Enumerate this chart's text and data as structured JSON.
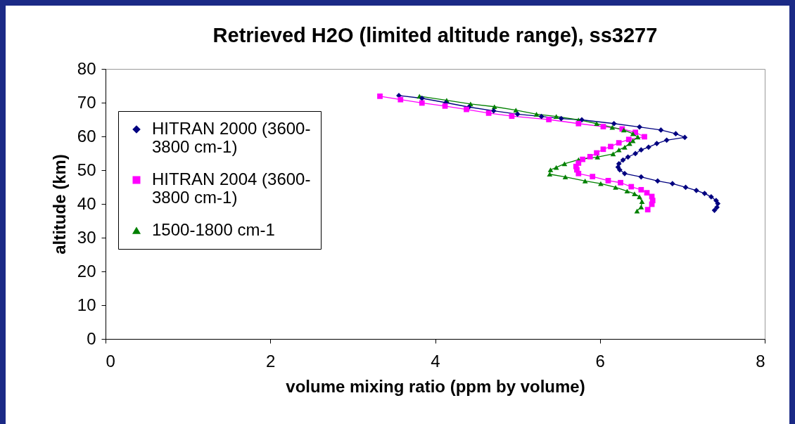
{
  "chart_data": {
    "type": "line",
    "title": "Retrieved H2O (limited altitude range), ss3277",
    "xlabel": "volume mixing ratio (ppm by volume)",
    "ylabel": "altitude (km)",
    "xlim": [
      0,
      8
    ],
    "xticks": [
      0,
      2,
      4,
      6,
      8
    ],
    "ylim": [
      0,
      80
    ],
    "yticks": [
      0,
      10,
      20,
      30,
      40,
      50,
      60,
      70,
      80
    ],
    "grid": false,
    "legend": "top left",
    "line_style": "solid",
    "series": [
      {
        "name": "HITRAN 2000 (3600-3800 cm-1)",
        "color": "#000080",
        "marker": "diamond",
        "x": [
          3.56,
          3.84,
          4.13,
          4.41,
          4.71,
          5.0,
          5.29,
          5.53,
          5.78,
          6.17,
          6.48,
          6.74,
          6.92,
          7.03,
          6.81,
          6.69,
          6.59,
          6.5,
          6.43,
          6.34,
          6.28,
          6.23,
          6.22,
          6.24,
          6.3,
          6.5,
          6.7,
          6.88,
          7.04,
          7.17,
          7.27,
          7.35,
          7.41,
          7.43,
          7.42,
          7.39
        ],
        "values": [
          72.1,
          71.3,
          70.0,
          68.7,
          67.6,
          66.6,
          65.9,
          65.3,
          64.9,
          63.8,
          62.8,
          61.9,
          60.8,
          59.7,
          58.9,
          57.9,
          56.8,
          56.0,
          54.9,
          53.9,
          53.0,
          51.9,
          50.9,
          50.1,
          49.0,
          48.0,
          46.8,
          46.0,
          44.9,
          44.0,
          43.1,
          42.1,
          41.0,
          40.1,
          39.0,
          38.1
        ]
      },
      {
        "name": "HITRAN 2004 (3600-3800 cm-1)",
        "color": "#ff00ff",
        "marker": "square",
        "x": [
          3.33,
          3.58,
          3.84,
          4.12,
          4.38,
          4.65,
          4.93,
          5.38,
          5.74,
          6.04,
          6.27,
          6.43,
          6.54,
          6.35,
          6.23,
          6.13,
          6.04,
          5.96,
          5.88,
          5.79,
          5.74,
          5.71,
          5.72,
          5.74,
          5.91,
          6.1,
          6.25,
          6.38,
          6.5,
          6.57,
          6.63,
          6.64,
          6.63,
          6.58
        ],
        "values": [
          71.9,
          70.9,
          69.9,
          69.0,
          68.0,
          66.9,
          66.0,
          65.0,
          63.8,
          62.9,
          62.2,
          61.2,
          59.9,
          59.1,
          58.1,
          57.0,
          56.2,
          55.1,
          54.0,
          53.2,
          52.1,
          51.1,
          50.1,
          49.0,
          48.1,
          46.9,
          46.3,
          45.1,
          44.2,
          43.3,
          42.2,
          41.0,
          39.9,
          38.3
        ]
      },
      {
        "name": "1500-1800 cm-1",
        "color": "#008000",
        "marker": "triangle",
        "x": [
          3.81,
          4.14,
          4.43,
          4.72,
          4.98,
          5.23,
          5.47,
          5.74,
          5.96,
          6.15,
          6.29,
          6.4,
          6.46,
          6.4,
          6.36,
          6.3,
          6.23,
          6.16,
          5.97,
          5.74,
          5.57,
          5.47,
          5.4,
          5.39,
          5.58,
          5.82,
          6.01,
          6.19,
          6.33,
          6.42,
          6.48,
          6.51,
          6.5,
          6.45
        ],
        "values": [
          71.9,
          70.7,
          69.6,
          68.8,
          67.8,
          66.6,
          65.9,
          64.9,
          63.8,
          62.7,
          61.9,
          60.8,
          59.8,
          58.7,
          57.9,
          56.8,
          56.0,
          54.8,
          53.9,
          53.1,
          51.9,
          50.8,
          50.1,
          48.8,
          48.0,
          46.8,
          46.0,
          44.9,
          43.8,
          43.0,
          42.1,
          40.7,
          39.1,
          37.9
        ]
      }
    ]
  }
}
